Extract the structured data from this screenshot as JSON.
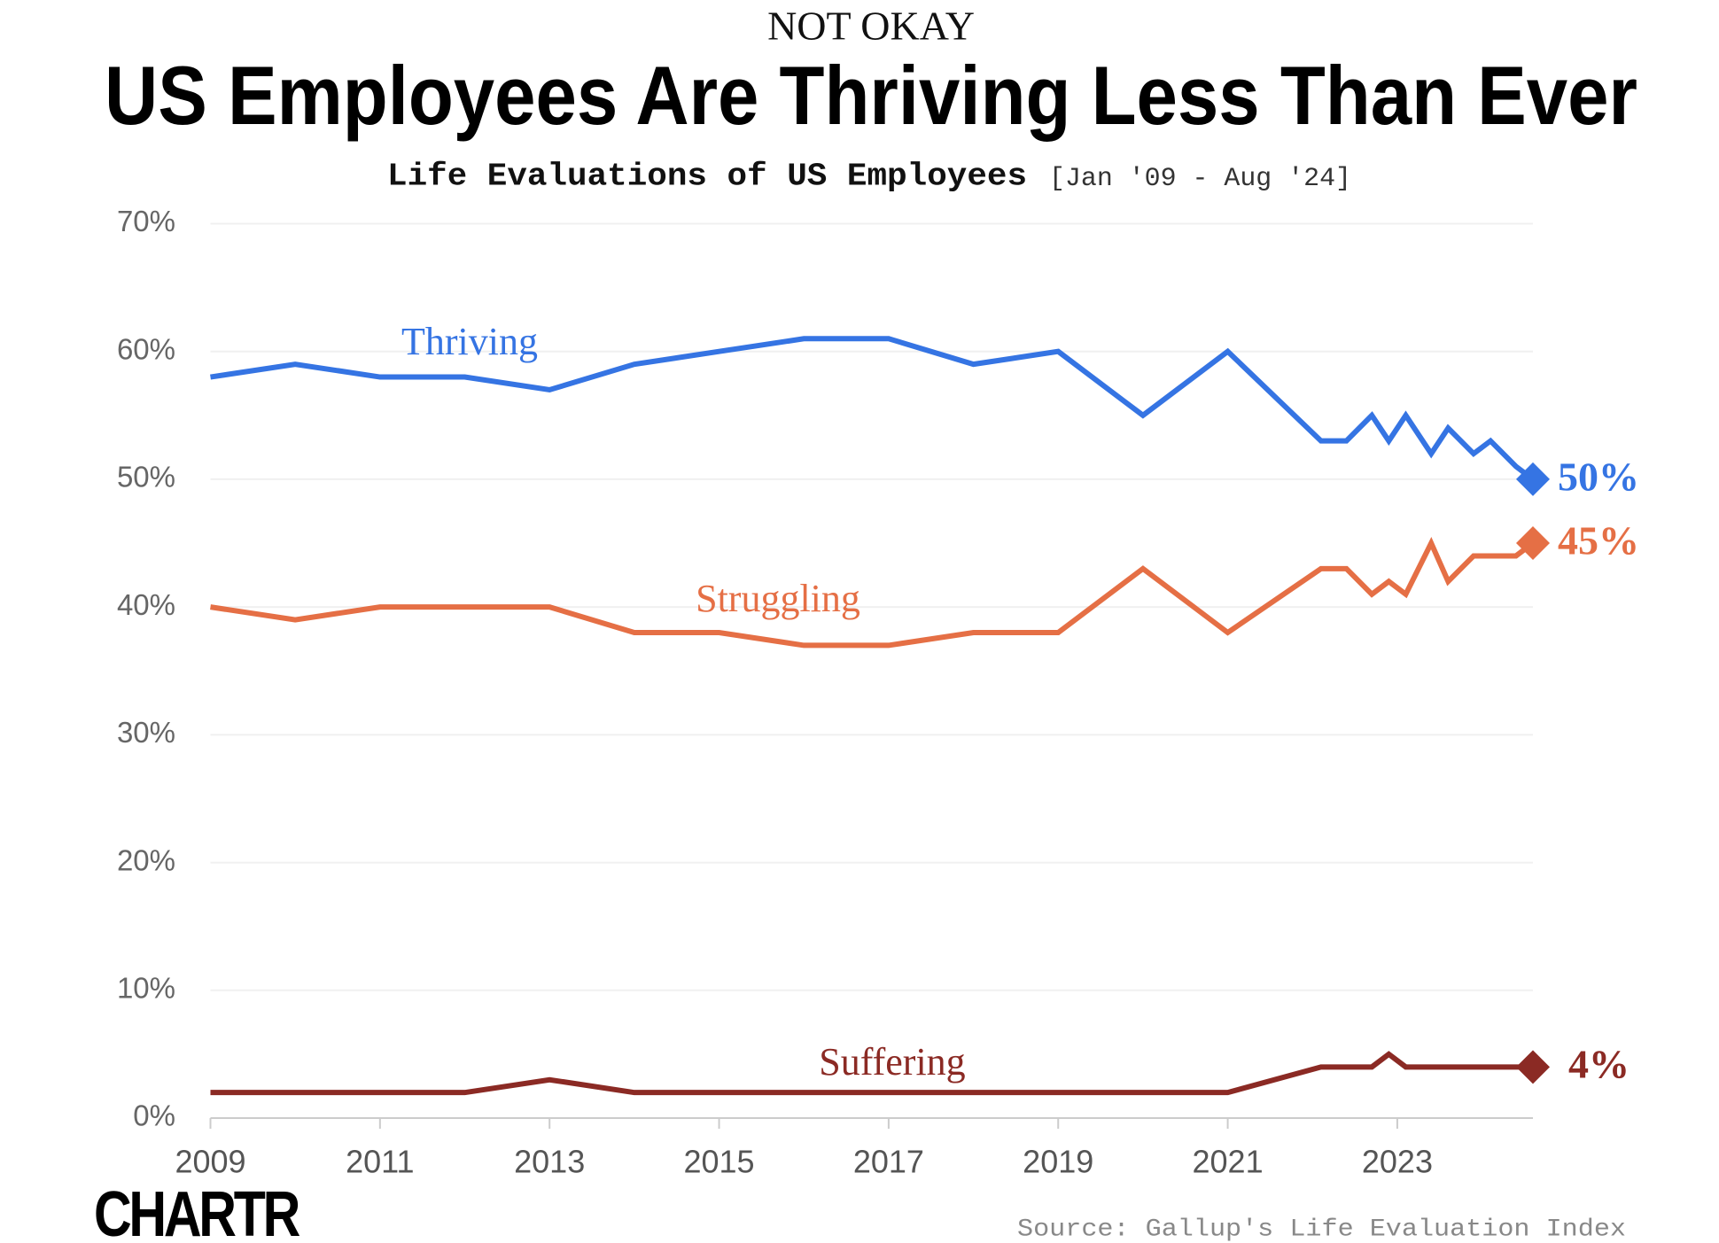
{
  "chart_data": {
    "type": "line",
    "kicker": "NOT OKAY",
    "title": "US Employees Are Thriving Less Than Ever",
    "subtitle": "Life Evaluations of US Employees",
    "date_range": "[Jan '09 - Aug '24]",
    "source": "Source: Gallup's Life Evaluation Index",
    "logo": "CHARTR",
    "x": [
      2009,
      2010,
      2011,
      2012,
      2013,
      2014,
      2015,
      2016,
      2017,
      2018,
      2019,
      2020,
      2021,
      2022.1,
      2022.4,
      2022.7,
      2022.9,
      2023.1,
      2023.4,
      2023.6,
      2023.9,
      2024.1,
      2024.4,
      2024.6
    ],
    "series": [
      {
        "name": "Thriving",
        "color": "#3574e3",
        "end_label": "50%",
        "values": [
          58,
          59,
          58,
          58,
          57,
          59,
          60,
          61,
          61,
          59,
          60,
          55,
          60,
          53,
          53,
          55,
          53,
          55,
          52,
          54,
          52,
          53,
          51,
          50
        ]
      },
      {
        "name": "Struggling",
        "color": "#e56f45",
        "end_label": "45%",
        "values": [
          40,
          39,
          40,
          40,
          40,
          38,
          38,
          37,
          37,
          38,
          38,
          43,
          38,
          43,
          43,
          41,
          42,
          41,
          45,
          42,
          44,
          44,
          44,
          45
        ]
      },
      {
        "name": "Suffering",
        "color": "#8b2a24",
        "end_label": "4%",
        "values": [
          2,
          2,
          2,
          2,
          3,
          2,
          2,
          2,
          2,
          2,
          2,
          2,
          2,
          4,
          4,
          4,
          5,
          4,
          4,
          4,
          4,
          4,
          4,
          4
        ]
      }
    ],
    "xlim": [
      2009,
      2024.6
    ],
    "xticks": [
      2009,
      2011,
      2013,
      2015,
      2017,
      2019,
      2021,
      2023
    ],
    "ylim": [
      0,
      70
    ],
    "yticks": [
      {
        "value": 0,
        "label": "0%"
      },
      {
        "value": 10,
        "label": "10%"
      },
      {
        "value": 20,
        "label": "20%"
      },
      {
        "value": 30,
        "label": "30%"
      },
      {
        "value": 40,
        "label": "40%"
      },
      {
        "value": 50,
        "label": "50%"
      },
      {
        "value": 60,
        "label": "60%"
      },
      {
        "value": 70,
        "label": "70%"
      }
    ],
    "grid": true
  }
}
